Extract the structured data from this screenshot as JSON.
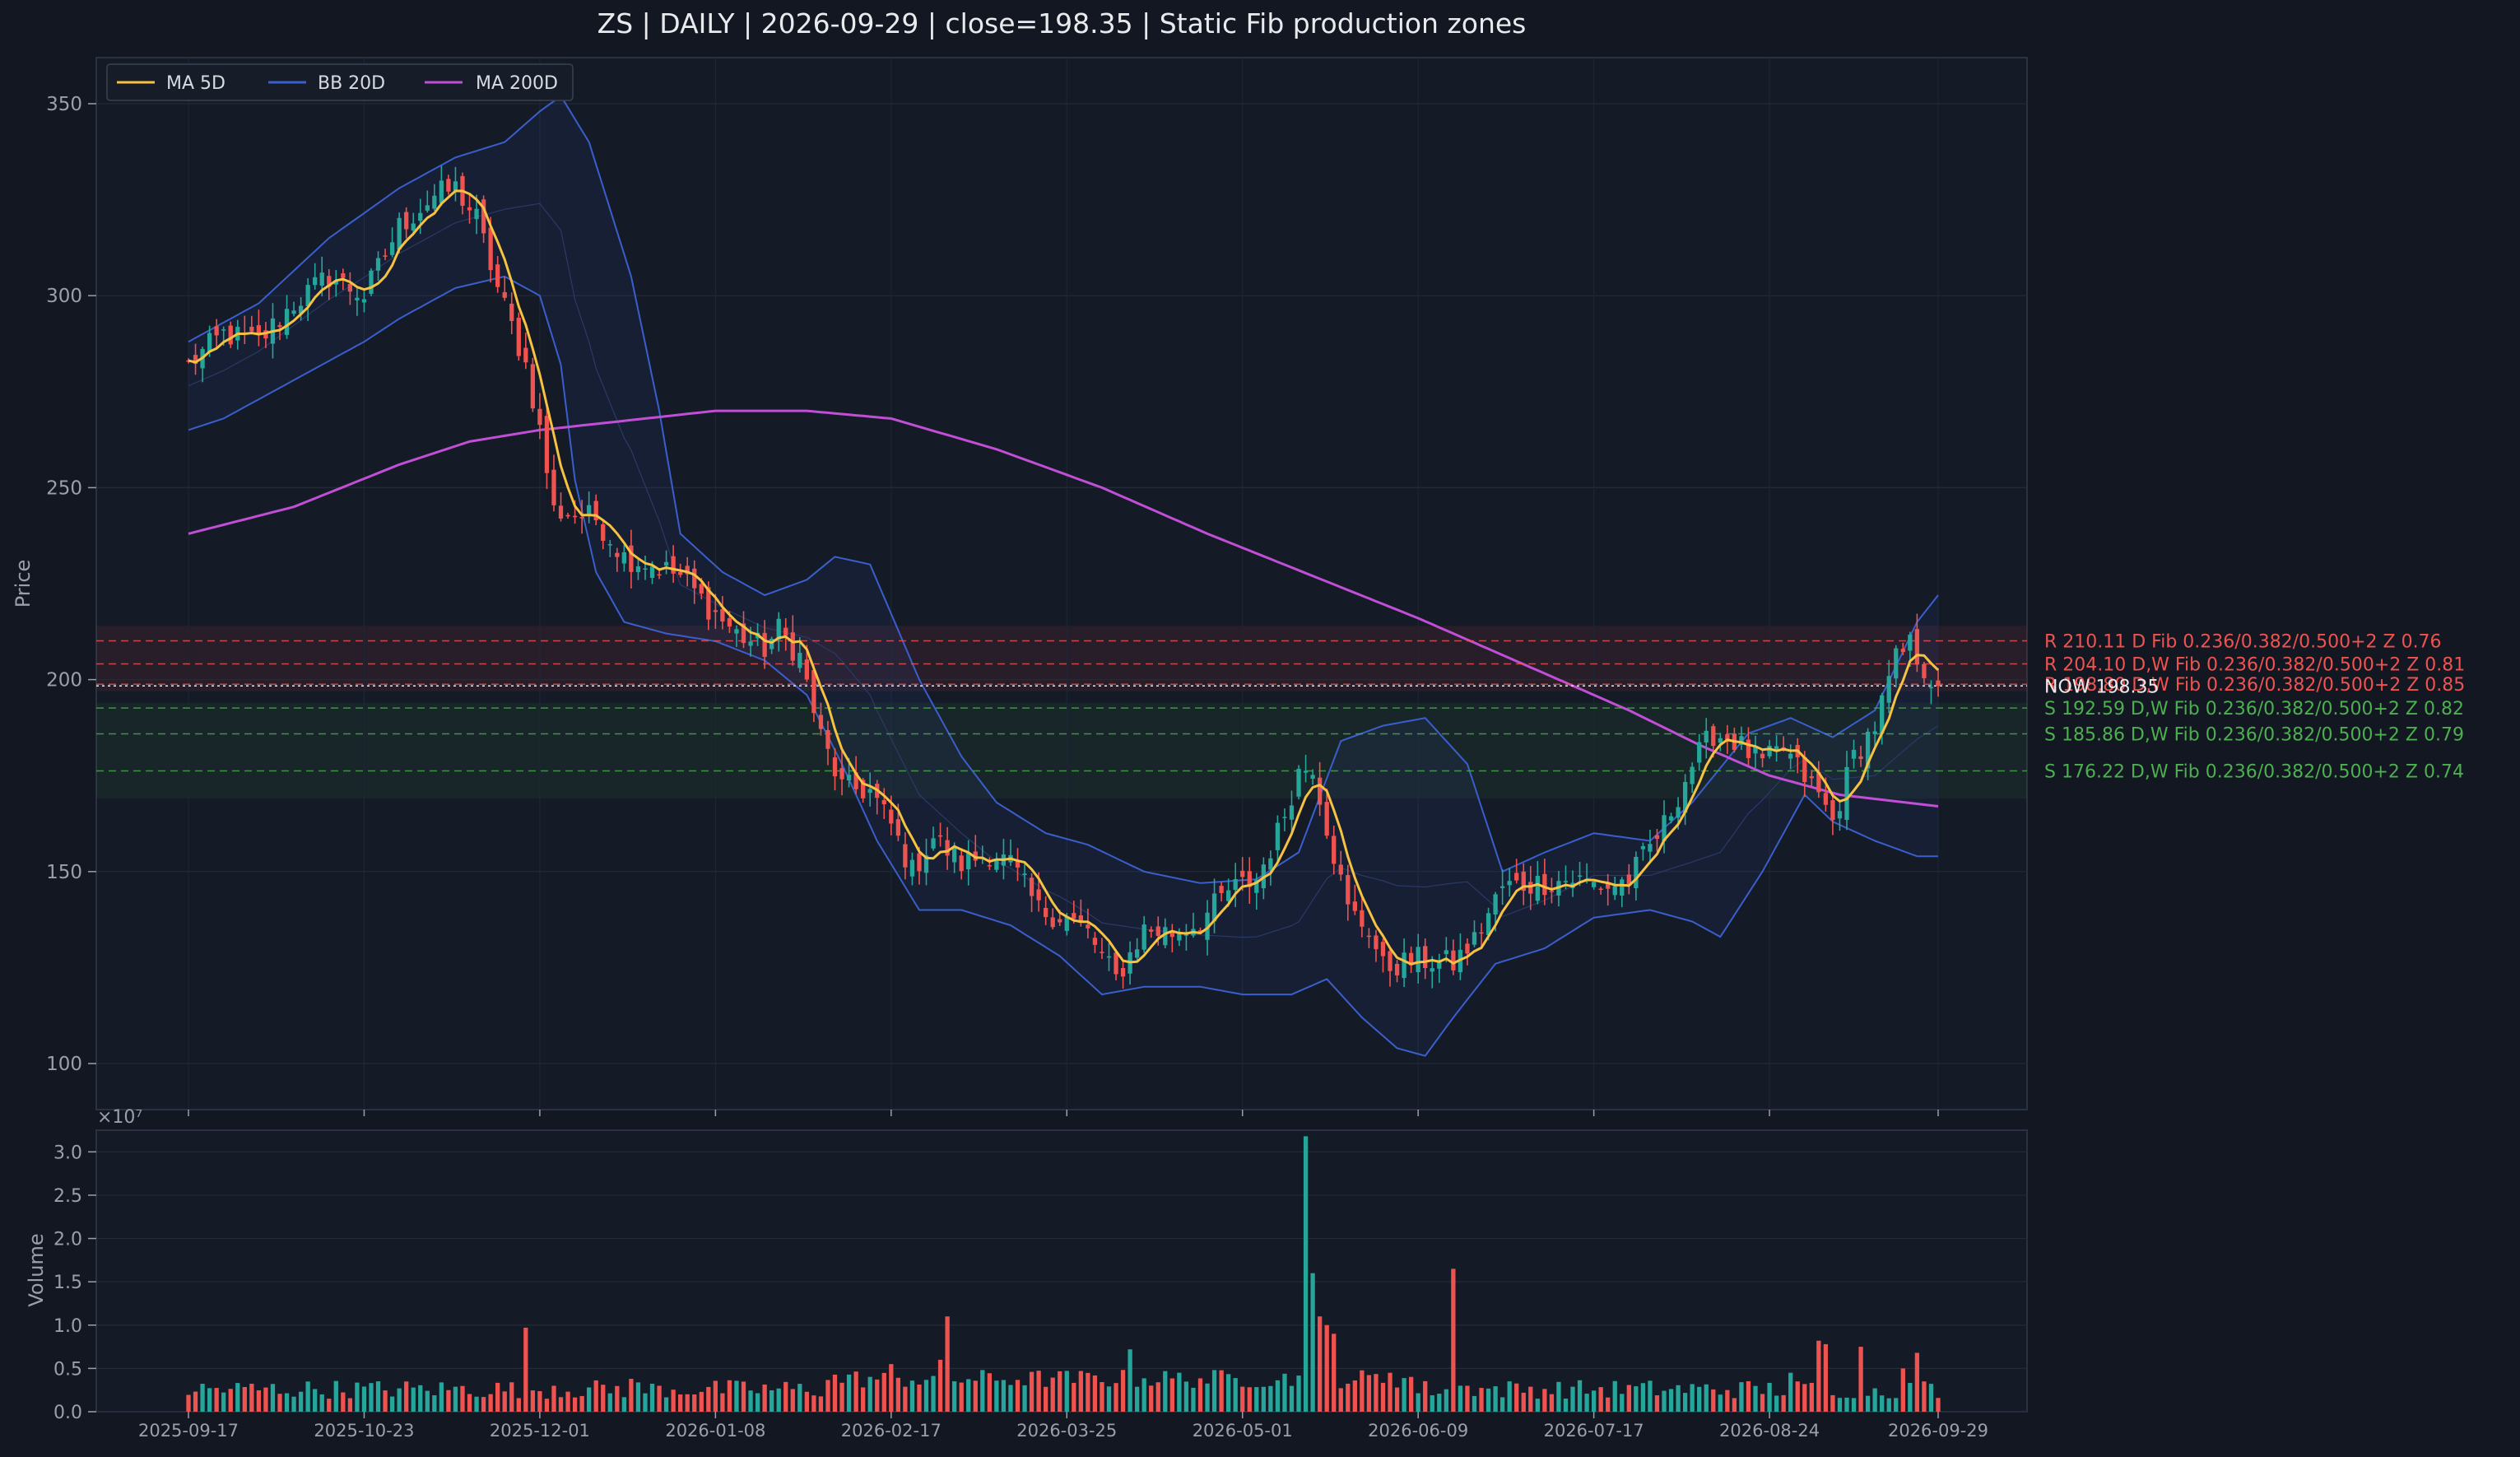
{
  "chart_data": {
    "type": "candlestick",
    "title": "ZS  |  DAILY  |  2026-09-29  |  close=198.35  |  Static Fib production zones",
    "colors": {
      "background": "#131722",
      "panel": "#141a26",
      "up": "#26a69a",
      "down": "#ef5350",
      "ma5": "#f5c242",
      "bb": "#3a5fcd",
      "ma200": "#c04fd6",
      "resistance": "#ef5350",
      "support": "#4caf50",
      "axis_text": "#9aa0ab"
    },
    "legend": {
      "position": "top-left",
      "entries": [
        {
          "label": "MA 5D",
          "color": "#f5c242"
        },
        {
          "label": "BB 20D",
          "color": "#3a5fcd"
        },
        {
          "label": "MA 200D",
          "color": "#c04fd6"
        }
      ]
    },
    "price_panel": {
      "ylabel": "Price",
      "ylim": [
        88,
        362
      ],
      "yticks": [
        100,
        150,
        200,
        250,
        300,
        350
      ]
    },
    "volume_panel": {
      "ylabel": "Volume",
      "scale_label": "×10⁷",
      "ylim": [
        0,
        3.25
      ],
      "yticks": [
        "0.0",
        "0.5",
        "1.0",
        "1.5",
        "2.0",
        "2.5",
        "3.0"
      ],
      "ytick_values": [
        0,
        0.5,
        1.0,
        1.5,
        2.0,
        2.5,
        3.0
      ]
    },
    "x_axis": {
      "dates": [
        "2025-09-17",
        "2025-10-23",
        "2025-12-01",
        "2026-01-08",
        "2026-02-17",
        "2026-03-25",
        "2026-05-01",
        "2026-06-09",
        "2026-07-17",
        "2026-08-24",
        "2026-09-29"
      ],
      "tick_indices": [
        0,
        25,
        50,
        75,
        100,
        125,
        150,
        175,
        200,
        225,
        249
      ]
    },
    "bars_count": 250,
    "close_anchors": [
      [
        0,
        282
      ],
      [
        5,
        290
      ],
      [
        10,
        288
      ],
      [
        15,
        298
      ],
      [
        20,
        305
      ],
      [
        25,
        300
      ],
      [
        30,
        318
      ],
      [
        35,
        326
      ],
      [
        38,
        328
      ],
      [
        41,
        320
      ],
      [
        44,
        302
      ],
      [
        48,
        282
      ],
      [
        50,
        265
      ],
      [
        52,
        244
      ],
      [
        55,
        243
      ],
      [
        58,
        242
      ],
      [
        62,
        232
      ],
      [
        66,
        230
      ],
      [
        70,
        227
      ],
      [
        74,
        219
      ],
      [
        78,
        212
      ],
      [
        82,
        208
      ],
      [
        84,
        213
      ],
      [
        87,
        206
      ],
      [
        90,
        185
      ],
      [
        93,
        172
      ],
      [
        97,
        171
      ],
      [
        100,
        162
      ],
      [
        103,
        150
      ],
      [
        106,
        159
      ],
      [
        110,
        152
      ],
      [
        114,
        155
      ],
      [
        117,
        152
      ],
      [
        121,
        140
      ],
      [
        125,
        138
      ],
      [
        128,
        134
      ],
      [
        132,
        122
      ],
      [
        136,
        135
      ],
      [
        140,
        134
      ],
      [
        144,
        137
      ],
      [
        148,
        145
      ],
      [
        152,
        148
      ],
      [
        155,
        160
      ],
      [
        158,
        176
      ],
      [
        160,
        178
      ],
      [
        162,
        162
      ],
      [
        165,
        140
      ],
      [
        168,
        135
      ],
      [
        170,
        125
      ],
      [
        175,
        127
      ],
      [
        180,
        126
      ],
      [
        183,
        132
      ],
      [
        187,
        146
      ],
      [
        192,
        147
      ],
      [
        197,
        148
      ],
      [
        202,
        146
      ],
      [
        205,
        148
      ],
      [
        210,
        162
      ],
      [
        214,
        178
      ],
      [
        217,
        186
      ],
      [
        220,
        184
      ],
      [
        224,
        178
      ],
      [
        227,
        182
      ],
      [
        229,
        177
      ],
      [
        232,
        170
      ],
      [
        234,
        163
      ],
      [
        237,
        180
      ],
      [
        240,
        188
      ],
      [
        243,
        205
      ],
      [
        245,
        209
      ],
      [
        248,
        200
      ],
      [
        249,
        198.35
      ]
    ],
    "ma200_anchors": [
      [
        0,
        238
      ],
      [
        15,
        245
      ],
      [
        30,
        256
      ],
      [
        40,
        262
      ],
      [
        50,
        265
      ],
      [
        65,
        268
      ],
      [
        75,
        270
      ],
      [
        88,
        270
      ],
      [
        100,
        268
      ],
      [
        115,
        260
      ],
      [
        130,
        250
      ],
      [
        145,
        238
      ],
      [
        160,
        227
      ],
      [
        175,
        216
      ],
      [
        190,
        204
      ],
      [
        205,
        192
      ],
      [
        215,
        183
      ],
      [
        225,
        175
      ],
      [
        235,
        170
      ],
      [
        249,
        167
      ]
    ],
    "bb_upper_anchors": [
      [
        0,
        288
      ],
      [
        10,
        298
      ],
      [
        20,
        315
      ],
      [
        30,
        328
      ],
      [
        38,
        336
      ],
      [
        45,
        340
      ],
      [
        50,
        348
      ],
      [
        53,
        352
      ],
      [
        57,
        340
      ],
      [
        63,
        305
      ],
      [
        67,
        270
      ],
      [
        70,
        238
      ],
      [
        76,
        228
      ],
      [
        82,
        222
      ],
      [
        88,
        226
      ],
      [
        92,
        232
      ],
      [
        97,
        230
      ],
      [
        104,
        200
      ],
      [
        110,
        180
      ],
      [
        115,
        168
      ],
      [
        122,
        160
      ],
      [
        128,
        157
      ],
      [
        136,
        150
      ],
      [
        144,
        147
      ],
      [
        152,
        148
      ],
      [
        158,
        155
      ],
      [
        164,
        184
      ],
      [
        170,
        188
      ],
      [
        176,
        190
      ],
      [
        182,
        178
      ],
      [
        187,
        150
      ],
      [
        193,
        155
      ],
      [
        200,
        160
      ],
      [
        208,
        158
      ],
      [
        214,
        168
      ],
      [
        222,
        186
      ],
      [
        228,
        190
      ],
      [
        234,
        185
      ],
      [
        240,
        192
      ],
      [
        246,
        215
      ],
      [
        249,
        222
      ]
    ],
    "bb_lower_anchors": [
      [
        0,
        265
      ],
      [
        5,
        268
      ],
      [
        12,
        275
      ],
      [
        20,
        283
      ],
      [
        25,
        288
      ],
      [
        30,
        294
      ],
      [
        38,
        302
      ],
      [
        45,
        305
      ],
      [
        50,
        300
      ],
      [
        53,
        282
      ],
      [
        55,
        252
      ],
      [
        58,
        228
      ],
      [
        62,
        215
      ],
      [
        68,
        212
      ],
      [
        75,
        210
      ],
      [
        82,
        205
      ],
      [
        88,
        196
      ],
      [
        93,
        178
      ],
      [
        98,
        158
      ],
      [
        104,
        140
      ],
      [
        110,
        140
      ],
      [
        117,
        136
      ],
      [
        124,
        128
      ],
      [
        130,
        118
      ],
      [
        136,
        120
      ],
      [
        144,
        120
      ],
      [
        150,
        118
      ],
      [
        157,
        118
      ],
      [
        162,
        122
      ],
      [
        167,
        112
      ],
      [
        172,
        104
      ],
      [
        176,
        102
      ],
      [
        180,
        112
      ],
      [
        186,
        126
      ],
      [
        193,
        130
      ],
      [
        200,
        138
      ],
      [
        208,
        140
      ],
      [
        214,
        137
      ],
      [
        218,
        133
      ],
      [
        224,
        150
      ],
      [
        230,
        170
      ],
      [
        234,
        163
      ],
      [
        240,
        158
      ],
      [
        246,
        154
      ],
      [
        249,
        154
      ]
    ],
    "volume_events": [
      [
        48,
        0.97
      ],
      [
        52,
        0.3
      ],
      [
        63,
        0.38
      ],
      [
        100,
        0.55
      ],
      [
        107,
        0.6
      ],
      [
        108,
        1.1
      ],
      [
        134,
        0.72
      ],
      [
        159,
        3.18
      ],
      [
        160,
        1.6
      ],
      [
        161,
        1.1
      ],
      [
        162,
        1.0
      ],
      [
        163,
        0.9
      ],
      [
        180,
        1.65
      ],
      [
        171,
        0.45
      ],
      [
        182,
        0.3
      ],
      [
        228,
        0.45
      ],
      [
        232,
        0.82
      ],
      [
        233,
        0.78
      ],
      [
        238,
        0.75
      ],
      [
        244,
        0.5
      ],
      [
        246,
        0.68
      ],
      [
        247,
        0.35
      ]
    ],
    "zones": [
      {
        "kind": "R",
        "price": 210.11,
        "label": "R 210.11  D  Fib 0.236/0.382/0.500+2  Z 0.76",
        "color": "#ef5350"
      },
      {
        "kind": "R",
        "price": 204.1,
        "label": "R 204.10  D,W  Fib 0.236/0.382/0.500+2  Z 0.81",
        "color": "#ef5350"
      },
      {
        "kind": "R",
        "price": 198.8,
        "label": "R 198.80  D,W  Fib 0.236/0.382/0.500+2  Z 0.85",
        "color": "#ef5350"
      },
      {
        "kind": "S",
        "price": 192.59,
        "label": "S 192.59  D,W  Fib 0.236/0.382/0.500+2  Z 0.82",
        "color": "#4caf50"
      },
      {
        "kind": "S",
        "price": 185.86,
        "label": "S 185.86  D,W  Fib 0.236/0.382/0.500+2  Z 0.79",
        "color": "#4caf50"
      },
      {
        "kind": "S",
        "price": 176.22,
        "label": "S 176.22  D,W  Fib 0.236/0.382/0.500+2  Z 0.74",
        "color": "#4caf50"
      }
    ],
    "resistance_band": [
      197,
      214
    ],
    "support_band": [
      169,
      194
    ],
    "now_line": {
      "price": 198.35,
      "label": "NOW 198.35"
    }
  }
}
